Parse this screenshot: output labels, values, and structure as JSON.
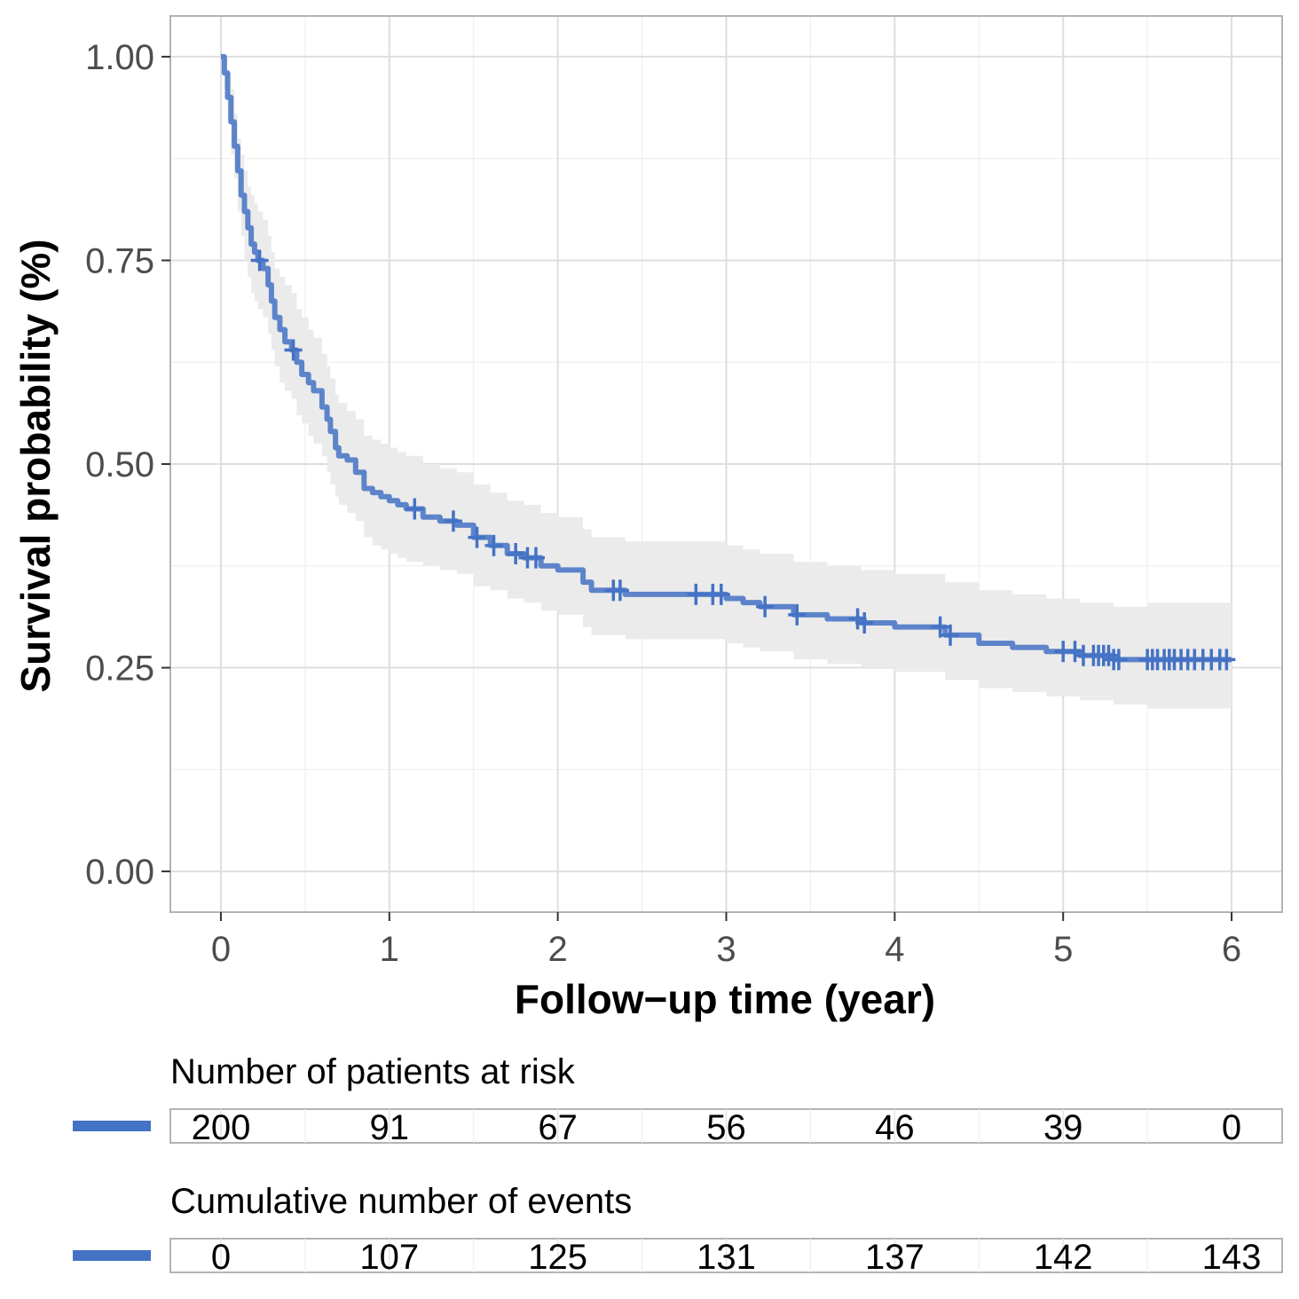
{
  "chart_data": {
    "type": "line",
    "xlabel": "Follow−up time (year)",
    "ylabel": "Survival probability (%)",
    "xlim": [
      -0.3,
      6.3
    ],
    "ylim": [
      -0.05,
      1.05
    ],
    "x_ticks": [
      "0",
      "1",
      "2",
      "3",
      "4",
      "5",
      "6"
    ],
    "y_ticks": [
      "0.00",
      "0.25",
      "0.50",
      "0.75",
      "1.00"
    ],
    "grid": true,
    "colors": {
      "line": "#4472c4",
      "ci": "#ebebeb",
      "grid": "#dedede",
      "panel_border": "#b3b3b3"
    },
    "series": [
      {
        "x": [
          0,
          0.02,
          0.04,
          0.06,
          0.08,
          0.1,
          0.12,
          0.14,
          0.16,
          0.18,
          0.2,
          0.22,
          0.25,
          0.28,
          0.3,
          0.32,
          0.35,
          0.38,
          0.42,
          0.45,
          0.48,
          0.52,
          0.55,
          0.6,
          0.63,
          0.65,
          0.68,
          0.7,
          0.75,
          0.8,
          0.85,
          0.9,
          0.95,
          1.0,
          1.05,
          1.1,
          1.2,
          1.3,
          1.4,
          1.5,
          1.6,
          1.7,
          1.8,
          1.9,
          2.0,
          2.1,
          2.15,
          2.2,
          2.4,
          2.6,
          2.8,
          3.0,
          3.1,
          3.2,
          3.4,
          3.6,
          3.8,
          4.0,
          4.2,
          4.3,
          4.5,
          4.7,
          4.9,
          5.1,
          5.3,
          5.5,
          5.7,
          6.0
        ],
        "y": [
          1.0,
          0.98,
          0.95,
          0.92,
          0.89,
          0.86,
          0.83,
          0.81,
          0.79,
          0.77,
          0.76,
          0.75,
          0.74,
          0.72,
          0.7,
          0.68,
          0.665,
          0.65,
          0.64,
          0.625,
          0.61,
          0.6,
          0.59,
          0.57,
          0.555,
          0.54,
          0.52,
          0.51,
          0.505,
          0.49,
          0.47,
          0.465,
          0.46,
          0.455,
          0.45,
          0.445,
          0.435,
          0.43,
          0.425,
          0.41,
          0.4,
          0.39,
          0.385,
          0.375,
          0.37,
          0.37,
          0.355,
          0.345,
          0.34,
          0.34,
          0.34,
          0.335,
          0.33,
          0.325,
          0.315,
          0.31,
          0.305,
          0.3,
          0.3,
          0.29,
          0.28,
          0.275,
          0.27,
          0.265,
          0.26,
          0.26,
          0.26,
          0.26
        ],
        "lower": [
          1.0,
          0.96,
          0.92,
          0.88,
          0.85,
          0.81,
          0.78,
          0.75,
          0.73,
          0.71,
          0.7,
          0.69,
          0.68,
          0.66,
          0.64,
          0.62,
          0.6,
          0.59,
          0.58,
          0.56,
          0.55,
          0.535,
          0.525,
          0.51,
          0.49,
          0.475,
          0.46,
          0.45,
          0.44,
          0.43,
          0.41,
          0.4,
          0.395,
          0.39,
          0.385,
          0.38,
          0.375,
          0.37,
          0.365,
          0.35,
          0.345,
          0.335,
          0.33,
          0.32,
          0.315,
          0.315,
          0.3,
          0.29,
          0.285,
          0.285,
          0.285,
          0.28,
          0.275,
          0.27,
          0.26,
          0.255,
          0.25,
          0.245,
          0.245,
          0.235,
          0.225,
          0.22,
          0.215,
          0.21,
          0.205,
          0.2,
          0.2,
          0.2
        ],
        "upper": [
          1.0,
          1.0,
          0.98,
          0.96,
          0.93,
          0.9,
          0.88,
          0.86,
          0.84,
          0.83,
          0.82,
          0.81,
          0.8,
          0.78,
          0.76,
          0.74,
          0.73,
          0.72,
          0.71,
          0.69,
          0.68,
          0.665,
          0.655,
          0.635,
          0.62,
          0.605,
          0.585,
          0.575,
          0.565,
          0.555,
          0.535,
          0.53,
          0.525,
          0.52,
          0.515,
          0.51,
          0.5,
          0.495,
          0.49,
          0.475,
          0.465,
          0.455,
          0.45,
          0.44,
          0.435,
          0.435,
          0.42,
          0.41,
          0.405,
          0.405,
          0.405,
          0.4,
          0.395,
          0.39,
          0.38,
          0.375,
          0.37,
          0.365,
          0.365,
          0.355,
          0.345,
          0.34,
          0.335,
          0.33,
          0.325,
          0.33,
          0.33,
          0.33
        ],
        "censored_x": [
          0.23,
          0.43,
          1.15,
          1.38,
          1.52,
          1.62,
          1.75,
          1.82,
          1.87,
          2.33,
          2.37,
          2.82,
          2.92,
          2.97,
          3.23,
          3.42,
          3.78,
          3.82,
          4.27,
          4.33,
          5.0,
          5.07,
          5.12,
          5.18,
          5.21,
          5.24,
          5.27,
          5.3,
          5.33,
          5.5,
          5.53,
          5.56,
          5.6,
          5.63,
          5.66,
          5.7,
          5.74,
          5.78,
          5.83,
          5.88,
          5.93,
          5.97
        ]
      }
    ]
  },
  "risk_table": {
    "title": "Number of patients at risk",
    "values": [
      "200",
      "91",
      "67",
      "56",
      "46",
      "39",
      "0"
    ]
  },
  "events_table": {
    "title": "Cumulative number of events",
    "values": [
      "0",
      "107",
      "125",
      "131",
      "137",
      "142",
      "143"
    ]
  }
}
